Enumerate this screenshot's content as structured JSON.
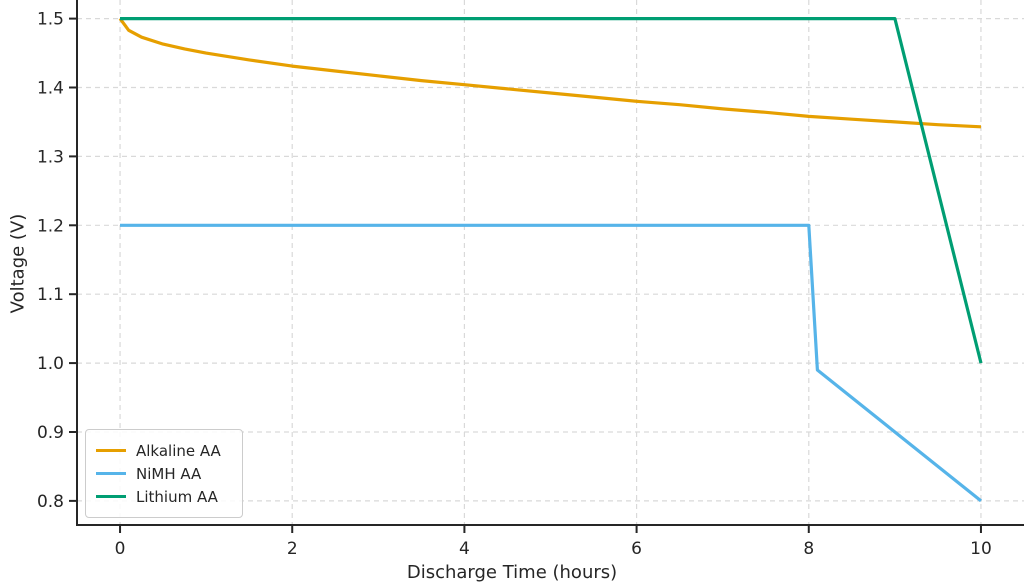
{
  "chart_data": {
    "type": "line",
    "title": "",
    "xlabel": "Discharge Time (hours)",
    "ylabel": "Voltage (V)",
    "xlim": [
      -0.5,
      10.5
    ],
    "ylim": [
      0.765,
      1.527
    ],
    "xticks": [
      0,
      2,
      4,
      6,
      8,
      10
    ],
    "xtick_labels": [
      "0",
      "2",
      "4",
      "6",
      "8",
      "10"
    ],
    "yticks": [
      0.8,
      0.9,
      1.0,
      1.1,
      1.2,
      1.3,
      1.4,
      1.5
    ],
    "ytick_labels": [
      "0.8",
      "0.9",
      "1.0",
      "1.1",
      "1.2",
      "1.3",
      "1.4",
      "1.5"
    ],
    "grid": true,
    "grid_style": "dashed",
    "legend_position": "lower-left",
    "series": [
      {
        "name": "Alkaline AA",
        "color": "#E69F00",
        "x": [
          0,
          0.1,
          0.25,
          0.5,
          0.75,
          1,
          1.5,
          2,
          2.5,
          3,
          3.5,
          4,
          4.5,
          5,
          5.5,
          6,
          6.5,
          7,
          7.5,
          8,
          8.5,
          9,
          9.5,
          10
        ],
        "y": [
          1.5,
          1.483,
          1.473,
          1.463,
          1.456,
          1.45,
          1.44,
          1.431,
          1.424,
          1.417,
          1.41,
          1.404,
          1.398,
          1.392,
          1.386,
          1.38,
          1.375,
          1.369,
          1.364,
          1.358,
          1.354,
          1.35,
          1.346,
          1.343
        ]
      },
      {
        "name": "NiMH AA",
        "color": "#56B4E9",
        "x": [
          0,
          8,
          8.1,
          10
        ],
        "y": [
          1.2,
          1.2,
          0.99,
          0.8
        ]
      },
      {
        "name": "Lithium AA",
        "color": "#009E73",
        "x": [
          0,
          9,
          10
        ],
        "y": [
          1.5,
          1.5,
          1.0
        ]
      }
    ]
  },
  "style_colors": {
    "grid": "#d9d9d9",
    "spine": "#262626",
    "tick_text": "#262626",
    "background": "#ffffff"
  }
}
